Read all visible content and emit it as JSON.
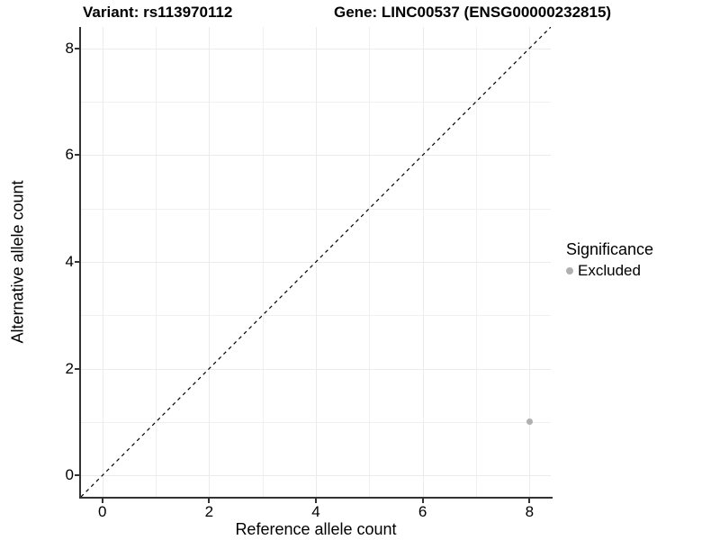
{
  "title": {
    "variant": "Variant: rs113970112",
    "gene": "Gene: LINC00537 (ENSG00000232815)"
  },
  "axes": {
    "x_label": "Reference allele count",
    "y_label": "Alternative allele count",
    "x_ticks": [
      "0",
      "2",
      "4",
      "6",
      "8"
    ],
    "y_ticks": [
      "0",
      "2",
      "4",
      "6",
      "8"
    ]
  },
  "legend": {
    "title": "Significance",
    "items": [
      {
        "label": "Excluded",
        "color": "#b0b0b0"
      }
    ]
  },
  "chart_data": {
    "type": "scatter",
    "title": "Variant: rs113970112    Gene: LINC00537 (ENSG00000232815)",
    "xlabel": "Reference allele count",
    "ylabel": "Alternative allele count",
    "xlim": [
      -0.4,
      8.4
    ],
    "ylim": [
      -0.4,
      8.4
    ],
    "x_major_ticks": [
      0,
      2,
      4,
      6,
      8
    ],
    "y_major_ticks": [
      0,
      2,
      4,
      6,
      8
    ],
    "x_minor_ticks": [
      1,
      3,
      5,
      7
    ],
    "y_minor_ticks": [
      1,
      3,
      5,
      7
    ],
    "grid": "on",
    "legend_position": "right",
    "series": [
      {
        "name": "Excluded",
        "color": "#b0b0b0",
        "points": [
          {
            "x": 8,
            "y": 1
          }
        ]
      }
    ],
    "reference_line": {
      "description": "identity line y = x",
      "style": "dashed",
      "color": "#000000"
    }
  },
  "colors": {
    "background": "#ffffff",
    "major_grid": "#ebebeb",
    "minor_grid": "#f0f0f0",
    "axis_line": "#333333",
    "text": "#000000",
    "excluded_point": "#b0b0b0",
    "reference_line": "#000000"
  }
}
